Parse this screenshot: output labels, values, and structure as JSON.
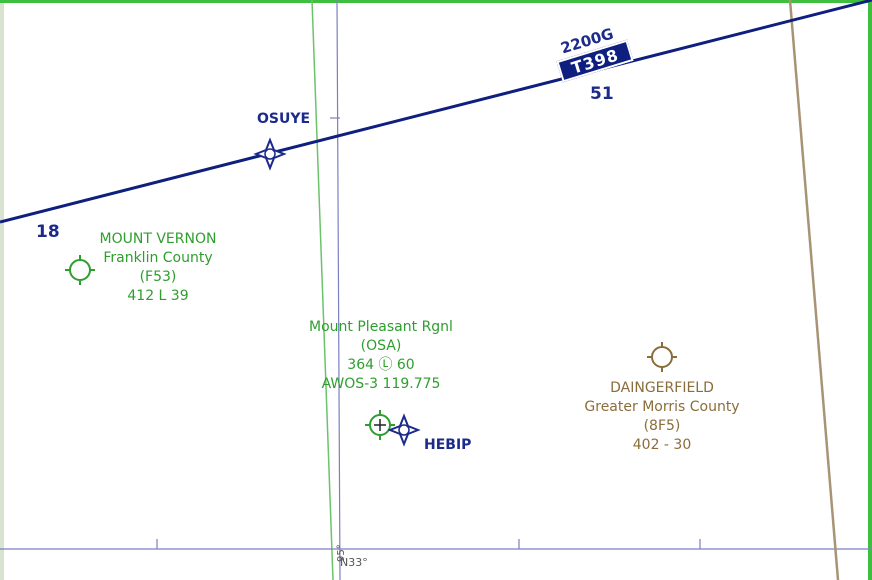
{
  "route": {
    "name": "T398",
    "mea": "2200G",
    "course_outbound": "51",
    "course_inbound": "18",
    "color": "#0f1f80"
  },
  "fixes": {
    "osuye": "OSUYE",
    "hebip": "HEBIP"
  },
  "airports": {
    "mount_vernon": {
      "city": "MOUNT VERNON",
      "name": "Franklin County",
      "ident": "(F53)",
      "info": "412 L 39"
    },
    "mount_pleasant": {
      "name": "Mount Pleasant Rgnl",
      "ident": "(OSA)",
      "info": "364 Ⓛ 60",
      "weather": "AWOS-3 119.775"
    },
    "daingerfield": {
      "city": "DAINGERFIELD",
      "name": "Greater Morris County",
      "ident": "(8F5)",
      "info": "402 - 30"
    }
  },
  "grid": {
    "latitude_label": "N33°",
    "longitude_label": "95°"
  },
  "colors": {
    "airport_green": "#2e9e2e",
    "airport_brown": "#8a6d3b",
    "navaid_navy": "#1c2a8c",
    "grid_line": "#7a7fc0"
  }
}
